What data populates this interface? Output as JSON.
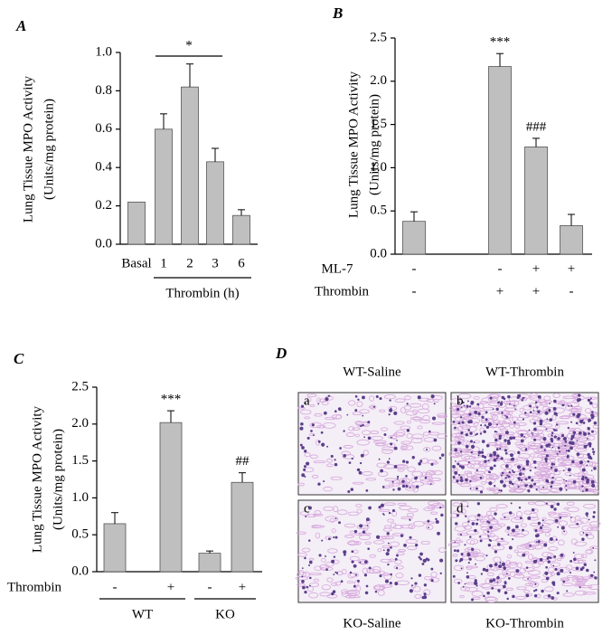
{
  "chart_data": [
    {
      "type": "bar",
      "panel_label": "A",
      "ylabel_lines": [
        "Lung Tissue MPO Activity",
        "(Units/mg protein)"
      ],
      "categories": [
        "Basal",
        "1",
        "2",
        "3",
        "6"
      ],
      "values": [
        0.22,
        0.6,
        0.82,
        0.43,
        0.15
      ],
      "errors": [
        null,
        0.08,
        0.12,
        0.07,
        0.03
      ],
      "color": "#bfbfbf",
      "ylim": [
        0,
        1
      ],
      "yticks": [
        {
          "value": 0,
          "label": "0.0"
        },
        0.2,
        0.4,
        0.6,
        0.8,
        {
          "value": 1,
          "label": "1.0"
        }
      ],
      "bracket_label": "*",
      "groups": [
        "Thrombin (h)"
      ]
    },
    {
      "type": "bar",
      "panel_label": "B",
      "ylabel_lines": [
        "Lung Tissue MPO Activity",
        "(Units/mg protein)"
      ],
      "values": [
        0.38,
        2.17,
        1.24,
        0.33
      ],
      "errors": [
        0.11,
        0.15,
        0.1,
        0.13
      ],
      "bar_labels": [
        null,
        "***",
        "###",
        null
      ],
      "color": "#bfbfbf",
      "ylim": [
        0,
        2.5
      ],
      "yticks": [
        {
          "value": 0,
          "label": "0.0"
        },
        0.5,
        {
          "value": 1,
          "label": "1.0"
        },
        1.5,
        {
          "value": 2,
          "label": "2.0"
        },
        2.5
      ],
      "rows": [
        {
          "name": "ML-7",
          "values": [
            "-",
            "-",
            "+",
            "+"
          ]
        },
        {
          "name": "Thrombin",
          "values": [
            "-",
            "+",
            "+",
            "-"
          ]
        }
      ]
    },
    {
      "type": "bar",
      "panel_label": "C",
      "ylabel_lines": [
        "Lung Tissue MPO Activity",
        "(Units/mg protein)"
      ],
      "values": [
        0.65,
        2.02,
        0.25,
        1.21
      ],
      "errors": [
        0.15,
        0.16,
        0.03,
        0.13
      ],
      "bar_labels": [
        null,
        "***",
        null,
        "##"
      ],
      "color": "#bfbfbf",
      "ylim": [
        0,
        2.5
      ],
      "yticks": [
        {
          "value": 0,
          "label": "0.0"
        },
        0.5,
        {
          "value": 1,
          "label": "1.0"
        },
        1.5,
        {
          "value": 2,
          "label": "2.0"
        },
        2.5
      ],
      "rows": [
        {
          "name": "Thrombin",
          "values": [
            "-",
            "+",
            "-",
            "+"
          ]
        }
      ],
      "groups": [
        "WT",
        "KO"
      ]
    }
  ],
  "panel_d": {
    "panel_label": "D",
    "images": [
      {
        "title": "WT-Saline",
        "letter": "a"
      },
      {
        "title": "WT-Thrombin",
        "letter": "b"
      },
      {
        "title": "KO-Saline",
        "letter": "c"
      },
      {
        "title": "KO-Thrombin",
        "letter": "d"
      }
    ]
  }
}
